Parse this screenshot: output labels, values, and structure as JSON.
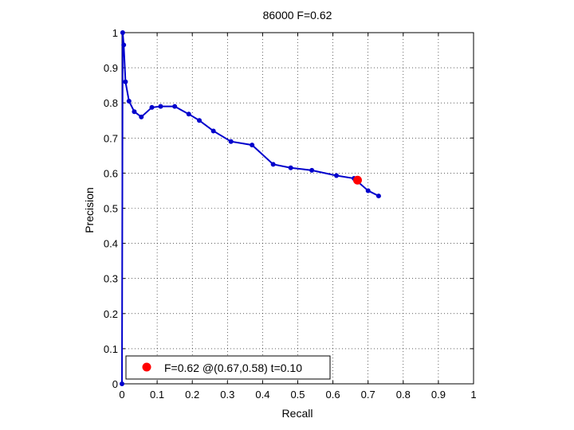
{
  "chart_data": {
    "type": "line",
    "title": "86000 F=0.62",
    "xlabel": "Recall",
    "ylabel": "Precision",
    "xlim": [
      0,
      1
    ],
    "ylim": [
      0,
      1
    ],
    "xticks": [
      "0",
      "0.1",
      "0.2",
      "0.3",
      "0.4",
      "0.5",
      "0.6",
      "0.7",
      "0.8",
      "0.9",
      "1"
    ],
    "yticks": [
      "0",
      "0.1",
      "0.2",
      "0.3",
      "0.4",
      "0.5",
      "0.6",
      "0.7",
      "0.8",
      "0.9",
      "1"
    ],
    "grid": true,
    "legend_location": "bottom-left",
    "series": [
      {
        "color": "#0000cc",
        "x": [
          0,
          0.002,
          0.005,
          0.01,
          0.02,
          0.035,
          0.055,
          0.085,
          0.11,
          0.15,
          0.19,
          0.22,
          0.26,
          0.31,
          0.37,
          0.43,
          0.48,
          0.54,
          0.61,
          0.66,
          0.7,
          0.73
        ],
        "y": [
          0,
          1.0,
          0.965,
          0.86,
          0.805,
          0.775,
          0.76,
          0.787,
          0.79,
          0.79,
          0.768,
          0.75,
          0.72,
          0.69,
          0.68,
          0.625,
          0.615,
          0.608,
          0.593,
          0.585,
          0.55,
          0.535
        ]
      }
    ],
    "best_point": {
      "x": 0.67,
      "y": 0.58,
      "color": "#ff0000",
      "label": "F=0.62 @(0.67,0.58) t=0.10"
    }
  }
}
